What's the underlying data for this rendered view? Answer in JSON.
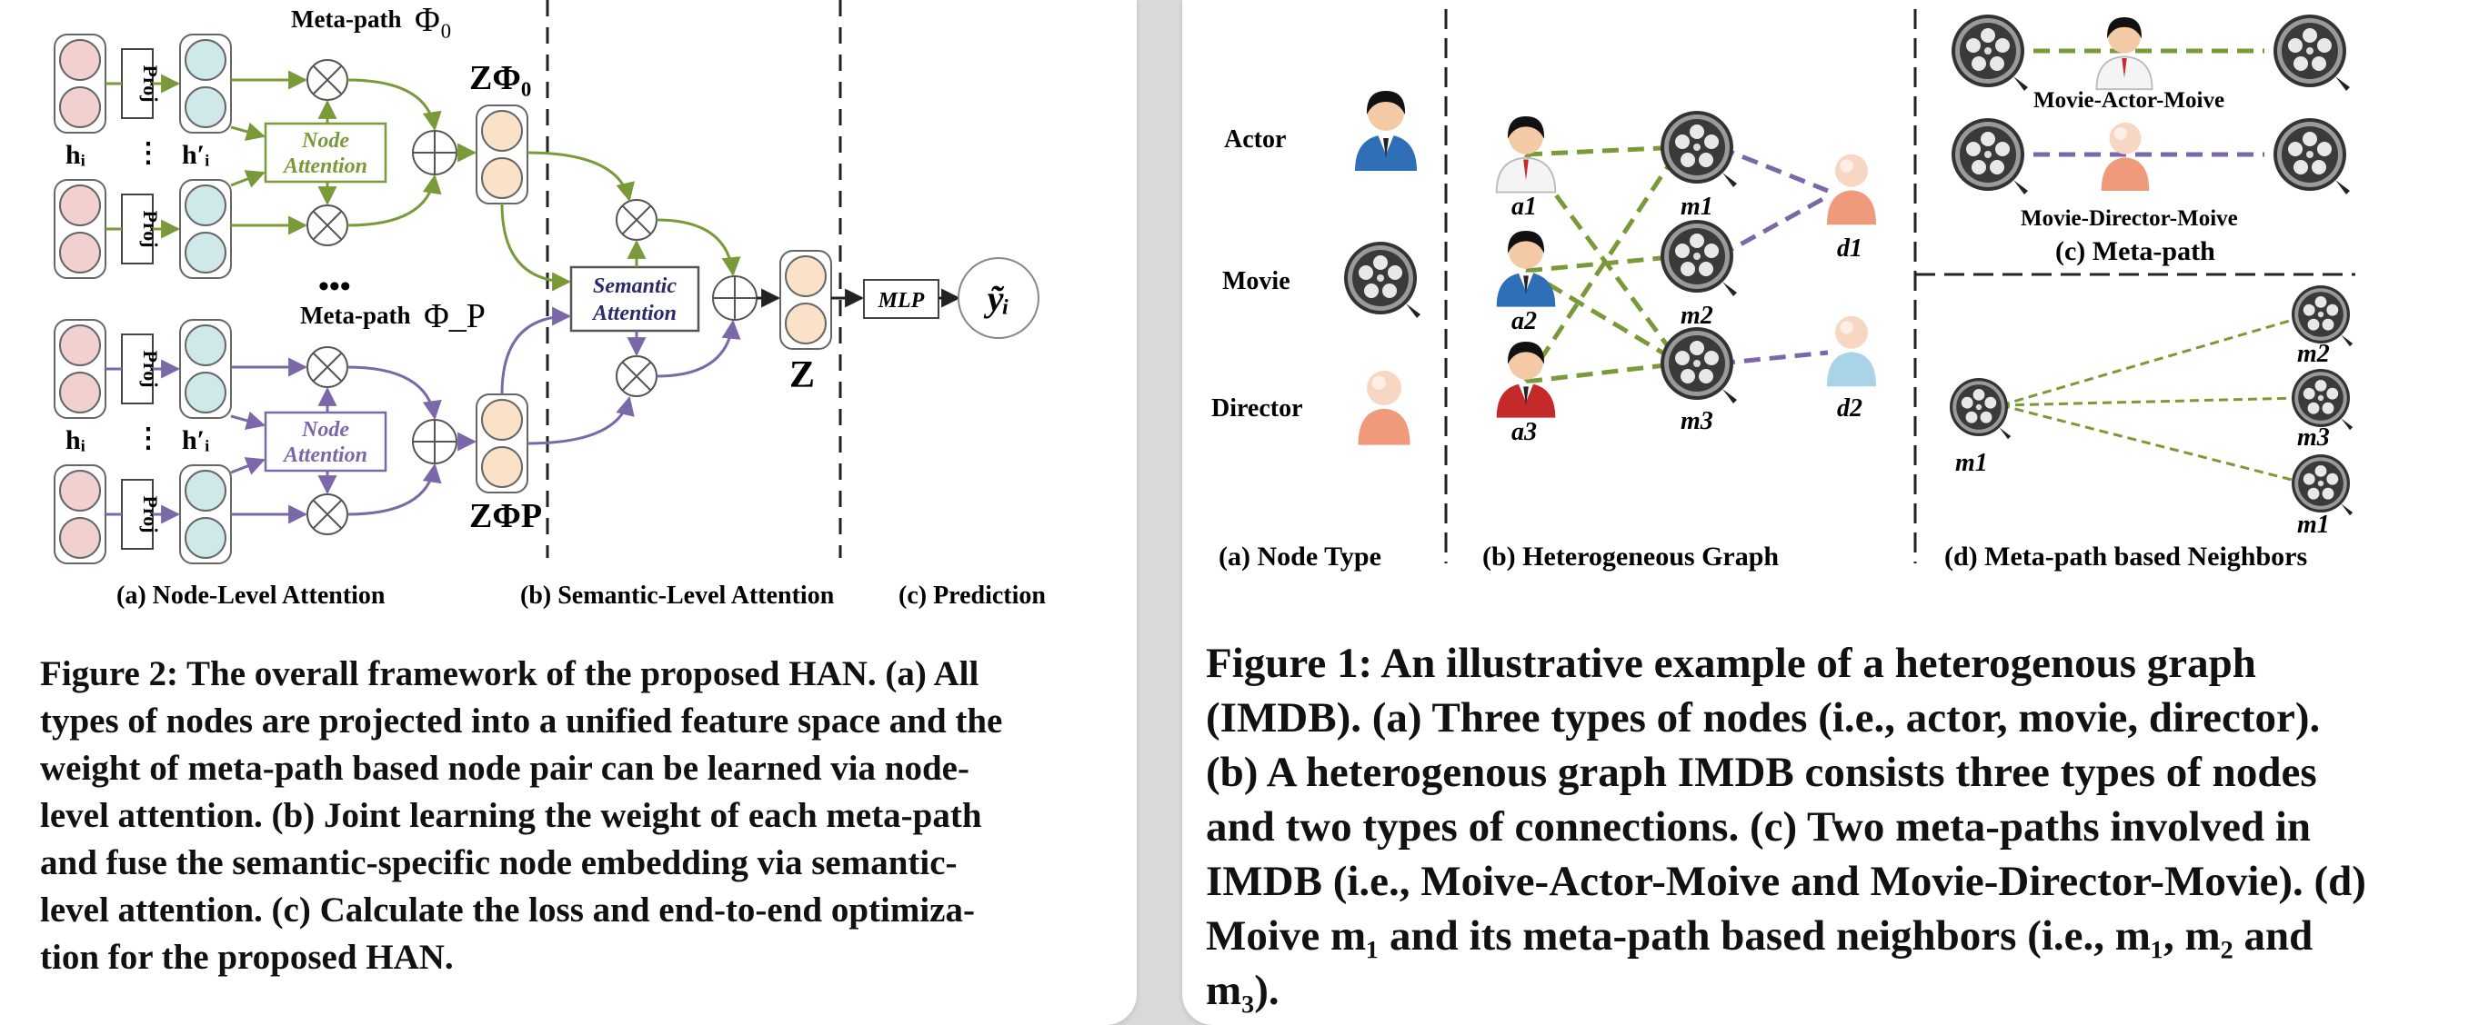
{
  "left_figure": {
    "metapath_top": "Meta-path",
    "metapath_top_sym": "Φ₀",
    "metapath_bottom": "Meta-path",
    "metapath_bottom_sym": "Φ_P",
    "proj": "Proj",
    "node_attention_1": "Node",
    "node_attention_2": "Attention",
    "semantic_attention_1": "Semantic",
    "semantic_attention_2": "Attention",
    "h_i": "hᵢ",
    "h_i_prime": "h′ᵢ",
    "vdots": "⋮",
    "dots": "•••",
    "z_phi0": "ZΦ₀",
    "z_phip": "ZΦP",
    "z": "Z",
    "mlp": "MLP",
    "y": "ỹᵢ",
    "panel_a": "(a) Node-Level Attention",
    "panel_b": "(b) Semantic-Level Attention",
    "panel_c": "(c) Prediction"
  },
  "left_caption": [
    "Figure 2: The overall framework of the proposed HAN. (a) All",
    "types of nodes are projected into a unified feature space and the",
    "weight of meta-path based node pair can be learned via node-",
    "level attention. (b) Joint learning the weight of each meta-path",
    "and fuse the semantic-specific node embedding via semantic-",
    "level attention. (c) Calculate the loss and end-to-end optimiza-",
    "tion for the proposed HAN."
  ],
  "right_figure": {
    "actor": "Actor",
    "movie": "Movie",
    "director": "Director",
    "a1": "a1",
    "a2": "a2",
    "a3": "a3",
    "m1": "m1",
    "m2": "m2",
    "m3": "m3",
    "d1": "d1",
    "d2": "d2",
    "mam": "Movie-Actor-Moive",
    "mdm": "Movie-Director-Moive",
    "panel_c": "(c) Meta-path",
    "panel_a": "(a) Node Type",
    "panel_b": "(b) Heterogeneous Graph",
    "panel_d": "(d) Meta-path based Neighbors"
  },
  "right_caption": [
    "Figure 1: An illustrative example of a heterogenous graph",
    "(IMDB). (a) Three types of nodes (i.e., actor, movie, director).",
    "(b) A heterogenous graph IMDB consists three types of nodes",
    "and two types of connections. (c) Two meta-paths involved in",
    "IMDB (i.e., Moive-Actor-Moive and Movie-Director-Movie). (d)",
    "Moive m₁ and its meta-path based neighbors (i.e., m₁, m₂ and",
    "m₃)."
  ],
  "colors": {
    "green": "#7a9a3a",
    "purple": "#7a68a8",
    "pink": "#f2d0d0",
    "cyan": "#cfe8ea",
    "peach": "#f9e2c8"
  }
}
